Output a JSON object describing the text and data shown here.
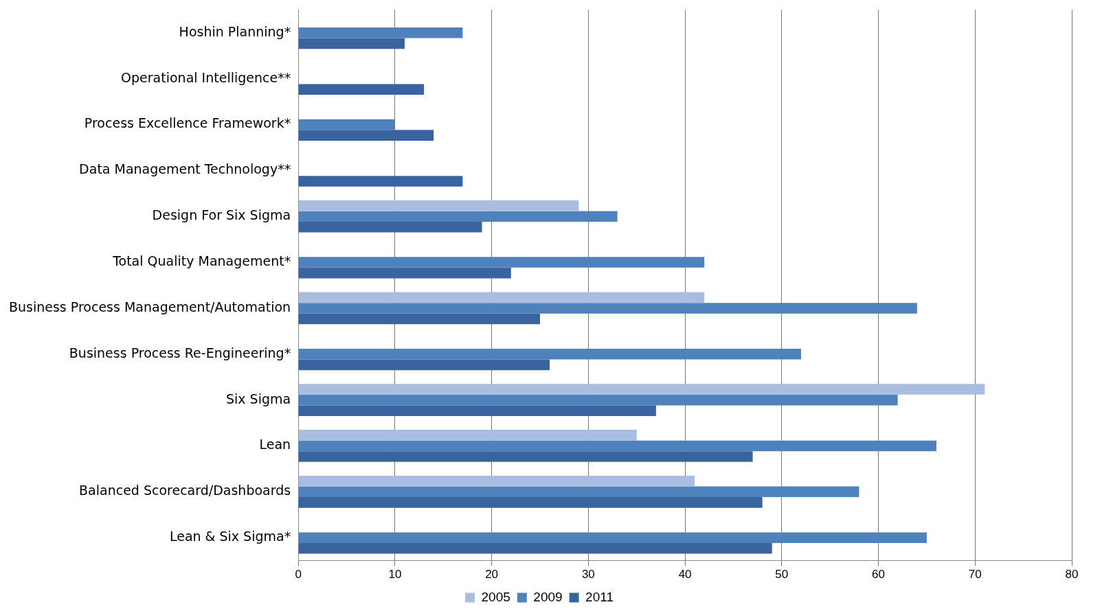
{
  "chart_data": {
    "type": "bar",
    "orientation": "horizontal",
    "categories": [
      "Hoshin Planning*",
      "Operational Intelligence**",
      "Process Excellence Framework*",
      "Data Management Technology**",
      "Design For Six Sigma",
      "Total Quality Management*",
      "Business Process Management/Automation",
      "Business Process Re-Engineering*",
      "Six Sigma",
      "Lean",
      "Balanced Scorecard/Dashboards",
      "Lean & Six Sigma*"
    ],
    "series": [
      {
        "name": "2005",
        "color": "#a9bde0",
        "values": [
          null,
          null,
          null,
          null,
          29,
          null,
          42,
          null,
          71,
          35,
          41,
          null
        ]
      },
      {
        "name": "2009",
        "color": "#4f81bd",
        "values": [
          17,
          null,
          10,
          null,
          33,
          42,
          64,
          52,
          62,
          66,
          58,
          65
        ]
      },
      {
        "name": "2011",
        "color": "#3a64a0",
        "values": [
          11,
          13,
          14,
          17,
          19,
          22,
          25,
          26,
          37,
          47,
          48,
          49
        ]
      }
    ],
    "xlim": [
      0,
      80
    ],
    "xticks": [
      0,
      10,
      20,
      30,
      40,
      50,
      60,
      70,
      80
    ],
    "grid": "x",
    "legend": "bottom"
  }
}
